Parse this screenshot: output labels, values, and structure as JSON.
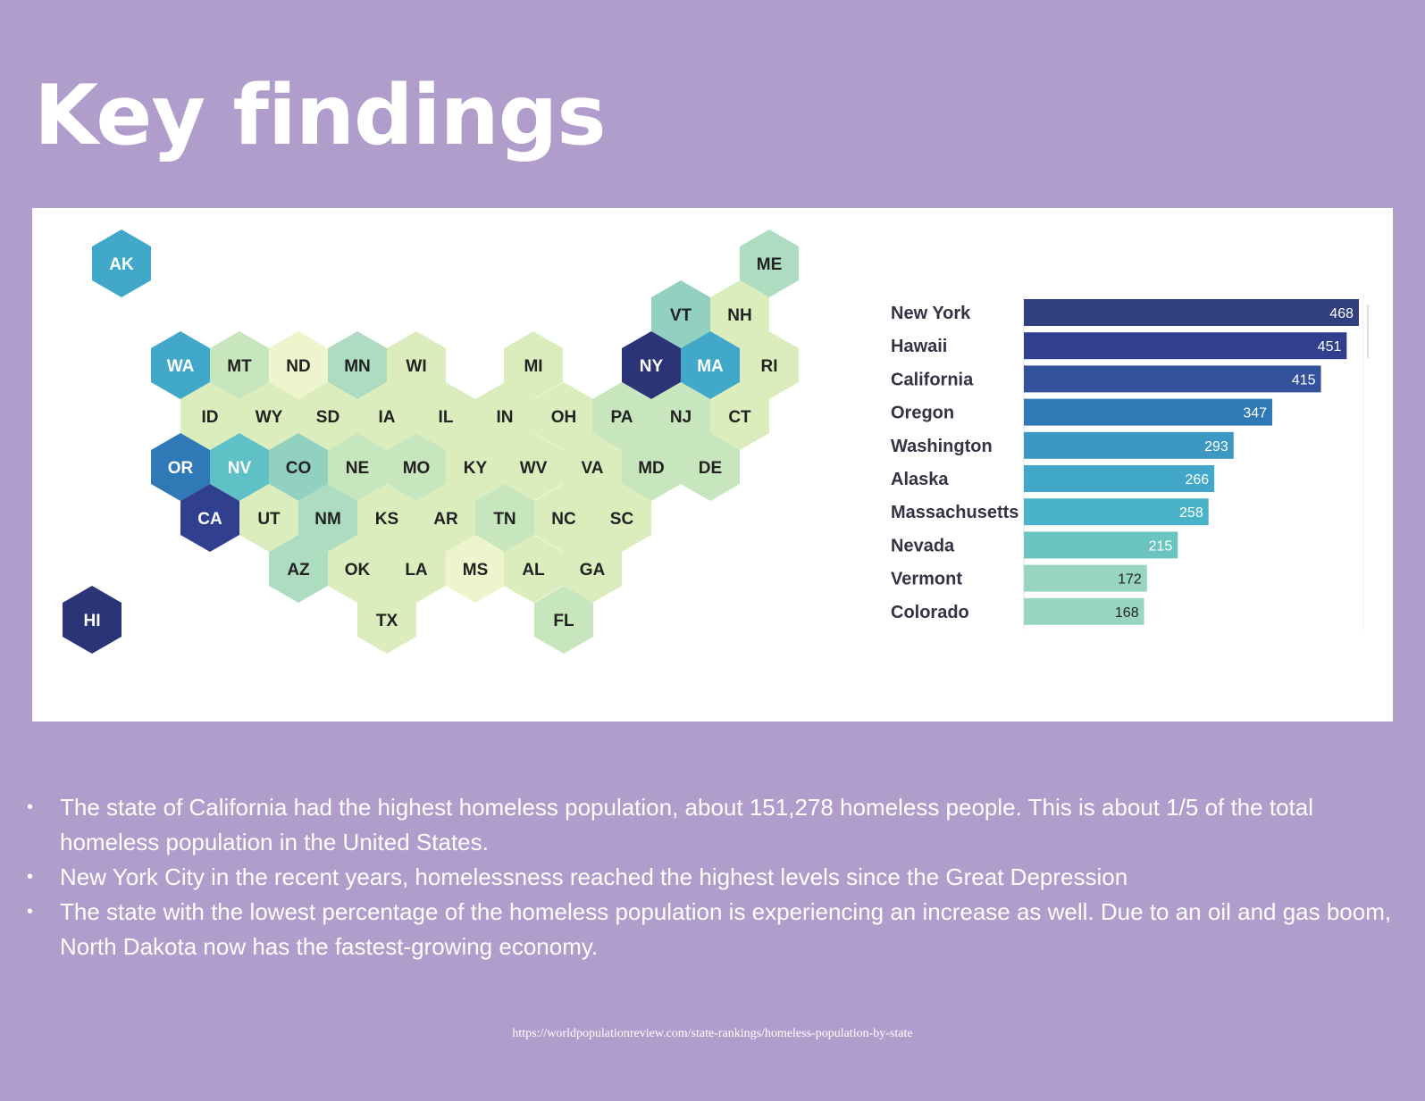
{
  "title": "Key findings",
  "chart_data": [
    {
      "type": "hex tile map",
      "colors": {
        "very_low": "#eef5cd",
        "low": "#dbedbd",
        "mid_low": "#c7e6bd",
        "mid": "#addcc1",
        "mid_high": "#92d1c0",
        "teal": "#5fc0c5",
        "blue": "#41a8ca",
        "blue_dark": "#2e79b6",
        "navy": "#313f8f",
        "navy_dark": "#2b3477"
      },
      "tiles": [
        {
          "label": "AK",
          "color": "#41a8ca",
          "text_color": "#ffffff"
        },
        {
          "label": "ME",
          "color": "#addcc1",
          "text_color": "#222222"
        },
        {
          "label": "VT",
          "color": "#92d1c0",
          "text_color": "#222222"
        },
        {
          "label": "NH",
          "color": "#dbedbd",
          "text_color": "#222222"
        },
        {
          "label": "WA",
          "color": "#41a8ca",
          "text_color": "#ffffff"
        },
        {
          "label": "MT",
          "color": "#c7e6bd",
          "text_color": "#222222"
        },
        {
          "label": "ND",
          "color": "#eef5cd",
          "text_color": "#222222"
        },
        {
          "label": "MN",
          "color": "#addcc1",
          "text_color": "#222222"
        },
        {
          "label": "WI",
          "color": "#dbedbd",
          "text_color": "#222222"
        },
        {
          "label": "MI",
          "color": "#dbedbd",
          "text_color": "#222222"
        },
        {
          "label": "NY",
          "color": "#2b3477",
          "text_color": "#ffffff"
        },
        {
          "label": "MA",
          "color": "#41a8ca",
          "text_color": "#ffffff"
        },
        {
          "label": "RI",
          "color": "#dbedbd",
          "text_color": "#222222"
        },
        {
          "label": "ID",
          "color": "#dbedbd",
          "text_color": "#222222"
        },
        {
          "label": "WY",
          "color": "#dbedbd",
          "text_color": "#222222"
        },
        {
          "label": "SD",
          "color": "#dbedbd",
          "text_color": "#222222"
        },
        {
          "label": "IA",
          "color": "#dbedbd",
          "text_color": "#222222"
        },
        {
          "label": "IL",
          "color": "#dbedbd",
          "text_color": "#222222"
        },
        {
          "label": "IN",
          "color": "#dbedbd",
          "text_color": "#222222"
        },
        {
          "label": "OH",
          "color": "#dbedbd",
          "text_color": "#222222"
        },
        {
          "label": "PA",
          "color": "#c7e6bd",
          "text_color": "#222222"
        },
        {
          "label": "NJ",
          "color": "#c7e6bd",
          "text_color": "#222222"
        },
        {
          "label": "CT",
          "color": "#dbedbd",
          "text_color": "#222222"
        },
        {
          "label": "OR",
          "color": "#2e79b6",
          "text_color": "#ffffff"
        },
        {
          "label": "NV",
          "color": "#5fc0c5",
          "text_color": "#ffffff"
        },
        {
          "label": "CO",
          "color": "#92d1c0",
          "text_color": "#222222"
        },
        {
          "label": "NE",
          "color": "#c7e6bd",
          "text_color": "#222222"
        },
        {
          "label": "MO",
          "color": "#c7e6bd",
          "text_color": "#222222"
        },
        {
          "label": "KY",
          "color": "#dbedbd",
          "text_color": "#222222"
        },
        {
          "label": "WV",
          "color": "#dbedbd",
          "text_color": "#222222"
        },
        {
          "label": "VA",
          "color": "#dbedbd",
          "text_color": "#222222"
        },
        {
          "label": "MD",
          "color": "#c7e6bd",
          "text_color": "#222222"
        },
        {
          "label": "DE",
          "color": "#c7e6bd",
          "text_color": "#222222"
        },
        {
          "label": "CA",
          "color": "#313f8f",
          "text_color": "#ffffff"
        },
        {
          "label": "UT",
          "color": "#dbedbd",
          "text_color": "#222222"
        },
        {
          "label": "NM",
          "color": "#addcc1",
          "text_color": "#222222"
        },
        {
          "label": "KS",
          "color": "#dbedbd",
          "text_color": "#222222"
        },
        {
          "label": "AR",
          "color": "#dbedbd",
          "text_color": "#222222"
        },
        {
          "label": "TN",
          "color": "#c7e6bd",
          "text_color": "#222222"
        },
        {
          "label": "NC",
          "color": "#dbedbd",
          "text_color": "#222222"
        },
        {
          "label": "SC",
          "color": "#dbedbd",
          "text_color": "#222222"
        },
        {
          "label": "AZ",
          "color": "#addcc1",
          "text_color": "#222222"
        },
        {
          "label": "OK",
          "color": "#dbedbd",
          "text_color": "#222222"
        },
        {
          "label": "LA",
          "color": "#dbedbd",
          "text_color": "#222222"
        },
        {
          "label": "MS",
          "color": "#eef5cd",
          "text_color": "#222222"
        },
        {
          "label": "AL",
          "color": "#dbedbd",
          "text_color": "#222222"
        },
        {
          "label": "GA",
          "color": "#dbedbd",
          "text_color": "#222222"
        },
        {
          "label": "HI",
          "color": "#2b3477",
          "text_color": "#ffffff"
        },
        {
          "label": "TX",
          "color": "#dbedbd",
          "text_color": "#222222"
        },
        {
          "label": "FL",
          "color": "#c7e6bd",
          "text_color": "#222222"
        }
      ]
    },
    {
      "type": "bar",
      "orientation": "horizontal",
      "categories": [
        "New York",
        "Hawaii",
        "California",
        "Oregon",
        "Washington",
        "Alaska",
        "Massachusetts",
        "Nevada",
        "Vermont",
        "Colorado"
      ],
      "values": [
        468,
        451,
        415,
        347,
        293,
        266,
        258,
        215,
        172,
        168
      ],
      "colors": [
        "#313e80",
        "#313f8f",
        "#34519c",
        "#2e79b6",
        "#3c98c3",
        "#41a8ca",
        "#4ab3c7",
        "#6cc4c0",
        "#97d5bf",
        "#98d6c0"
      ],
      "value_label_colors": [
        "#ffffff",
        "#ffffff",
        "#ffffff",
        "#ffffff",
        "#ffffff",
        "#ffffff",
        "#ffffff",
        "#ffffff",
        "#222222",
        "#222222"
      ],
      "xlim": [
        0,
        468
      ],
      "xlabel": "",
      "ylabel": ""
    }
  ],
  "findings": [
    "The state of California had the highest homeless population, about 151,278 homeless people. This is about 1/5 of the total homeless population in the United States.",
    "New York City in the recent years, homelessness reached the highest levels since the Great Depression",
    "The state with the lowest percentage of the homeless population is experiencing an increase as well. Due to an oil and gas boom, North Dakota now has the fastest-growing economy."
  ],
  "source": "https://worldpopulationreview.com/state-rankings/homeless-population-by-state"
}
